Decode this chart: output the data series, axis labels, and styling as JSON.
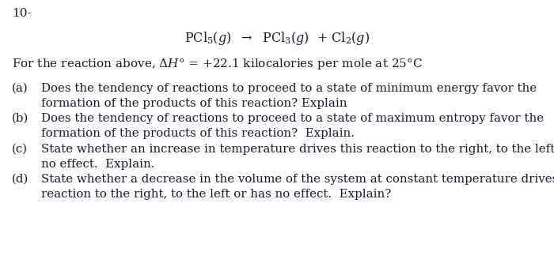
{
  "background_color": "#ffffff",
  "text_color": "#1a1a2e",
  "fig_width": 7.0,
  "fig_height": 3.33,
  "dpi": 100,
  "number_label": "10-",
  "equation_fontsize": 11.5,
  "for_reaction_fontsize": 11,
  "item_fontsize": 10.8,
  "number_fontsize": 11,
  "items": [
    {
      "label": "(a)",
      "line1": "Does the tendency of reactions to proceed to a state of minimum energy favor the",
      "line2": "formation of the products of this reaction? Explain"
    },
    {
      "label": "(b)",
      "line1": "Does the tendency of reactions to proceed to a state of maximum entropy favor the",
      "line2": "formation of the products of this reaction?  Explain."
    },
    {
      "label": "(c)",
      "line1": "State whether an increase in temperature drives this reaction to the right, to the left, or has",
      "line2": "no effect.  Explain."
    },
    {
      "label": "(d)",
      "line1": "State whether a decrease in the volume of the system at constant temperature drives this",
      "line2": "reaction to the right, to the left or has no effect.  Explain?"
    }
  ]
}
